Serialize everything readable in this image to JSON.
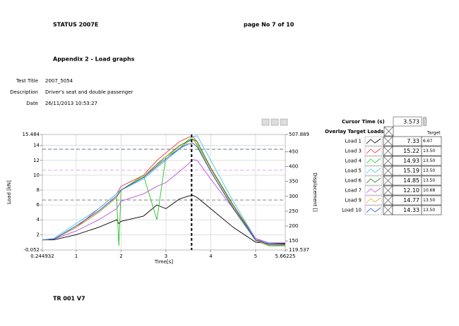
{
  "header": {
    "status": "STATUS 2007E",
    "page": "page No 7 of 10",
    "appendix": "Appendix 2 - Load graphs"
  },
  "test_info": {
    "rows": [
      [
        "Test Title",
        "2007_5054"
      ],
      [
        "Description",
        "Driver's seat and double passenger"
      ],
      [
        "Date",
        "26/11/2013  10:53:27"
      ]
    ]
  },
  "chart_data": {
    "type": "line",
    "x_label": "Time[s]",
    "y_label": "Load [kN]",
    "y2_label": "Displacement []",
    "x": [
      0.25,
      0.5,
      1,
      1.5,
      1.9,
      1.95,
      2,
      2.5,
      2.8,
      3,
      3.3,
      3.5,
      3.6,
      3.7,
      4,
      4.5,
      5,
      5.3,
      5.66
    ],
    "series": [
      {
        "name": "Load 1",
        "color": "#000000",
        "values": [
          1.3,
          1.3,
          2,
          3,
          4,
          3.5,
          3.8,
          4.5,
          6,
          5.5,
          6.8,
          7.2,
          7.3,
          7,
          5.5,
          3,
          1,
          0.8,
          0.8
        ]
      },
      {
        "name": "Load 3",
        "color": "#e8343a",
        "values": [
          1.3,
          1.4,
          3,
          5.5,
          7.5,
          8,
          8.5,
          10,
          12,
          13,
          14.5,
          15.1,
          15.2,
          14.5,
          11,
          6,
          1.5,
          0.6,
          0.5
        ]
      },
      {
        "name": "Load 4",
        "color": "#22c422",
        "values": [
          1.3,
          1.4,
          3,
          5,
          7,
          0.5,
          8,
          10,
          4,
          12.5,
          13.5,
          14.8,
          14.9,
          14,
          10.5,
          5.5,
          1.2,
          0.5,
          0.5
        ]
      },
      {
        "name": "Load 5",
        "color": "#3cc8e6",
        "values": [
          1.3,
          1.5,
          3.5,
          5.5,
          7.5,
          7.8,
          8,
          9.5,
          11,
          12,
          13.5,
          14.5,
          15.2,
          15.3,
          12,
          6.5,
          1.5,
          0.8,
          0.7
        ]
      },
      {
        "name": "Load 6",
        "color": "#1e7a1e",
        "values": [
          1.3,
          1.4,
          3,
          5,
          7,
          7.5,
          8,
          9.8,
          11.5,
          12.5,
          14,
          14.6,
          14.85,
          14.5,
          11,
          6,
          1.3,
          0.7,
          0.7
        ]
      },
      {
        "name": "Load 7",
        "color": "#c050e0",
        "values": [
          1.3,
          1.4,
          2.5,
          4,
          5.5,
          6,
          6.5,
          7.5,
          8.5,
          9,
          10.5,
          11.5,
          12.1,
          12,
          9.5,
          5.5,
          1.5,
          0.9,
          0.9
        ]
      },
      {
        "name": "Load 9",
        "color": "#e8a030",
        "values": [
          1.3,
          1.4,
          3,
          5,
          7,
          7.5,
          8,
          9.8,
          11.3,
          12.5,
          13.8,
          14.5,
          14.77,
          14.2,
          10.8,
          5.8,
          1.2,
          0.6,
          0.6
        ]
      },
      {
        "name": "Load 10",
        "color": "#3050d0",
        "values": [
          1.3,
          1.4,
          3.2,
          5.2,
          7.2,
          7.6,
          8,
          9.7,
          11.2,
          12.2,
          13.6,
          14.2,
          14.33,
          13.8,
          10.5,
          5.6,
          1.3,
          0.7,
          0.7
        ]
      }
    ],
    "xlim": [
      0.244932,
      5.66225
    ],
    "xticks": [
      0.244932,
      1,
      2,
      3,
      4,
      5,
      5.66225
    ],
    "ylim": [
      -0.052,
      15.484
    ],
    "yticks": [
      -0.052,
      2,
      4,
      6,
      8,
      10,
      12,
      14,
      15.484
    ],
    "y2lim": [
      119.537,
      507.889
    ],
    "y2ticks": [
      119.537,
      150,
      200,
      250,
      300,
      350,
      400,
      450,
      507.889
    ],
    "grid": true
  },
  "cursor_panel": {
    "title": "Cursor Time (s)",
    "time": 3.573,
    "overlay_label": "Overlay Target Loads",
    "target_header": "Target",
    "rows": [
      {
        "value": "7.33",
        "target": "6.67"
      },
      {
        "value": "15.22",
        "target": "13.50"
      },
      {
        "value": "14.93",
        "target": "13.50"
      },
      {
        "value": "15.19",
        "target": "13.50"
      },
      {
        "value": "14.85",
        "target": "13.50"
      },
      {
        "value": "12.10",
        "target": "10.68"
      },
      {
        "value": "14.77",
        "target": "13.50"
      },
      {
        "value": "14.33",
        "target": "13.50"
      }
    ]
  },
  "footer": "TR 001   V7"
}
